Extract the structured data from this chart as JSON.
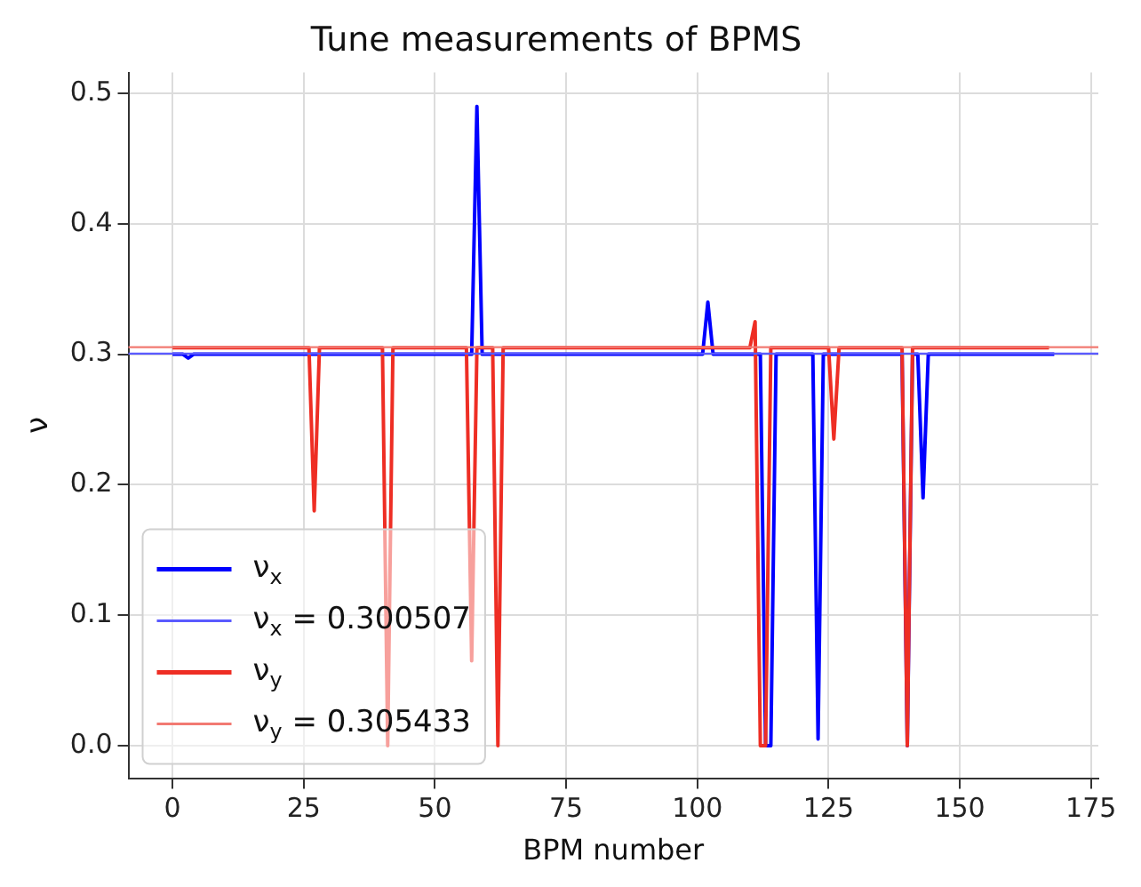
{
  "chart_data": {
    "type": "line",
    "title": "Tune measurements of BPMS",
    "xlabel": "BPM number",
    "ylabel": "ν",
    "series": [
      {
        "name": "ν$_{x}$",
        "color": "#0000ff",
        "x": [
          0,
          2,
          3,
          4,
          57,
          58,
          59,
          101,
          102,
          103,
          112,
          113,
          114,
          115,
          122,
          123,
          124,
          139,
          140,
          141,
          142,
          143,
          144,
          168
        ],
        "values": [
          0.3,
          0.3,
          0.297,
          0.3,
          0.3,
          0.49,
          0.3,
          0.3,
          0.34,
          0.3,
          0.3,
          0,
          0,
          0.3,
          0.3,
          0.005,
          0.3,
          0.3,
          0,
          0.3,
          0.3,
          0.19,
          0.3,
          0.3
        ]
      },
      {
        "name": "ν$_{y}$",
        "color": "#ee2e24",
        "x": [
          0,
          26,
          27,
          28,
          40,
          41,
          42,
          56,
          57,
          58,
          61,
          62,
          63,
          110,
          111,
          112,
          113,
          114,
          125,
          126,
          127,
          139,
          140,
          141,
          167
        ],
        "values": [
          0.305,
          0.305,
          0.18,
          0.305,
          0.305,
          0,
          0.305,
          0.305,
          0.065,
          0.305,
          0.305,
          0,
          0.305,
          0.305,
          0.325,
          0,
          0,
          0.305,
          0.305,
          0.235,
          0.305,
          0.305,
          0,
          0.305,
          0.305
        ]
      }
    ],
    "ref_lines": [
      {
        "axis": "y",
        "value": 0.300507,
        "label": "ν$_{x}$ = 0.300507",
        "color": "#5a5aff"
      },
      {
        "axis": "y",
        "value": 0.305433,
        "label": "ν$_{y}$ = 0.305433",
        "color": "#f27a72"
      }
    ],
    "xlim": [
      -8.4,
      176.4
    ],
    "xticks": [
      0,
      25,
      50,
      75,
      100,
      125,
      150,
      175
    ],
    "ylim": [
      -0.025,
      0.516
    ],
    "yticks": [
      {
        "value": 0,
        "label": "0.0"
      },
      0.1,
      0.2,
      0.3,
      0.4,
      0.5
    ],
    "grid": true,
    "legend": "bottom left",
    "line_style": "solid",
    "marker": "none"
  }
}
